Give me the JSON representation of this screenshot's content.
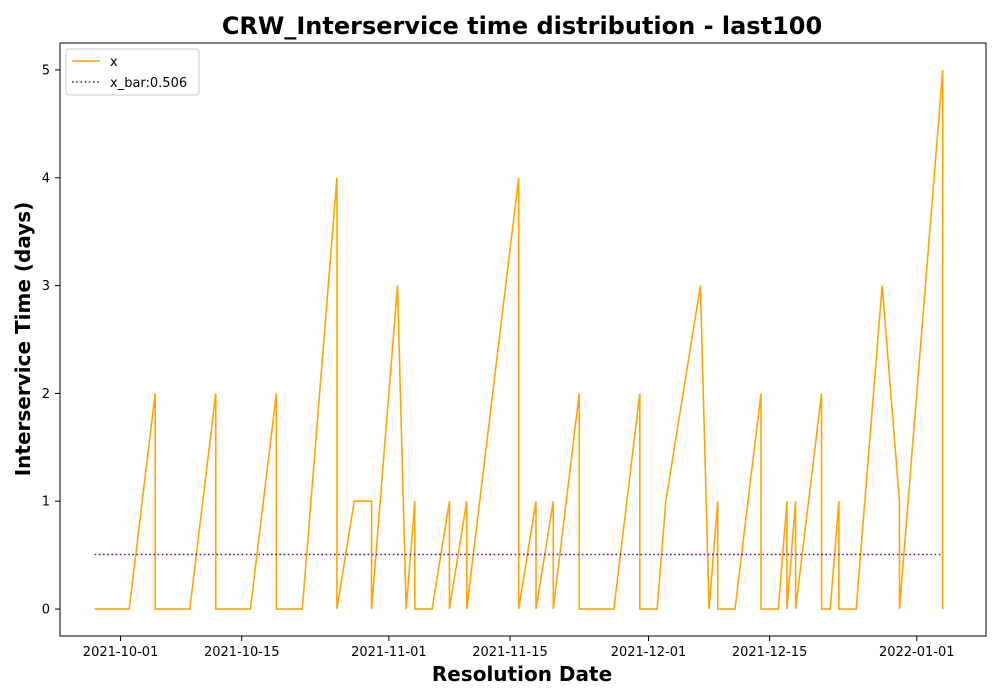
{
  "chart_data": {
    "type": "line",
    "title": "CRW_Interservice time distribution - last100",
    "xlabel": "Resolution Date",
    "ylabel": "Interservice Time (days)",
    "x_tick_labels": [
      "2021-10-01",
      "2021-10-15",
      "2021-11-01",
      "2021-11-15",
      "2021-12-01",
      "2021-12-15",
      "2022-01-01"
    ],
    "y_tick_labels": [
      "0",
      "1",
      "2",
      "3",
      "4",
      "5"
    ],
    "xlim": [
      "2021-09-24",
      "2022-01-09"
    ],
    "ylim": [
      -0.25,
      5.25
    ],
    "grid": false,
    "legend_position": "upper-left",
    "series": [
      {
        "name": "x",
        "color": "#ffa500",
        "style": "solid",
        "points": [
          [
            "2021-09-28",
            0
          ],
          [
            "2021-10-02",
            0
          ],
          [
            "2021-10-05",
            2
          ],
          [
            "2021-10-05",
            0
          ],
          [
            "2021-10-09",
            0
          ],
          [
            "2021-10-12",
            2
          ],
          [
            "2021-10-12",
            0
          ],
          [
            "2021-10-16",
            0
          ],
          [
            "2021-10-19",
            2
          ],
          [
            "2021-10-19",
            0
          ],
          [
            "2021-10-22",
            0
          ],
          [
            "2021-10-26",
            4
          ],
          [
            "2021-10-26",
            0
          ],
          [
            "2021-10-28",
            1
          ],
          [
            "2021-10-30",
            1
          ],
          [
            "2021-10-30",
            0
          ],
          [
            "2021-11-02",
            3
          ],
          [
            "2021-11-03",
            0
          ],
          [
            "2021-11-04",
            1
          ],
          [
            "2021-11-04",
            0
          ],
          [
            "2021-11-06",
            0
          ],
          [
            "2021-11-08",
            1
          ],
          [
            "2021-11-08",
            0
          ],
          [
            "2021-11-10",
            1
          ],
          [
            "2021-11-10",
            0
          ],
          [
            "2021-11-16",
            4
          ],
          [
            "2021-11-16",
            0
          ],
          [
            "2021-11-18",
            1
          ],
          [
            "2021-11-18",
            0
          ],
          [
            "2021-11-20",
            1
          ],
          [
            "2021-11-20",
            0
          ],
          [
            "2021-11-23",
            2
          ],
          [
            "2021-11-23",
            0
          ],
          [
            "2021-11-27",
            0
          ],
          [
            "2021-11-30",
            2
          ],
          [
            "2021-11-30",
            0
          ],
          [
            "2021-12-02",
            0
          ],
          [
            "2021-12-03",
            1
          ],
          [
            "2021-12-07",
            3
          ],
          [
            "2021-12-08",
            0
          ],
          [
            "2021-12-09",
            1
          ],
          [
            "2021-12-09",
            0
          ],
          [
            "2021-12-11",
            0
          ],
          [
            "2021-12-14",
            2
          ],
          [
            "2021-12-14",
            0
          ],
          [
            "2021-12-16",
            0
          ],
          [
            "2021-12-17",
            1
          ],
          [
            "2021-12-17",
            0
          ],
          [
            "2021-12-18",
            1
          ],
          [
            "2021-12-18",
            0
          ],
          [
            "2021-12-21",
            2
          ],
          [
            "2021-12-21",
            0
          ],
          [
            "2021-12-22",
            0
          ],
          [
            "2021-12-23",
            1
          ],
          [
            "2021-12-23",
            0
          ],
          [
            "2021-12-25",
            0
          ],
          [
            "2021-12-28",
            3
          ],
          [
            "2021-12-30",
            1
          ],
          [
            "2021-12-30",
            0
          ],
          [
            "2022-01-04",
            5
          ],
          [
            "2022-01-04",
            0
          ]
        ]
      },
      {
        "name": "x_bar:0.506",
        "color": "#800080",
        "style": "dotted",
        "points": [
          [
            "2021-09-28",
            0.506
          ],
          [
            "2022-01-04",
            0.506
          ]
        ]
      }
    ]
  }
}
